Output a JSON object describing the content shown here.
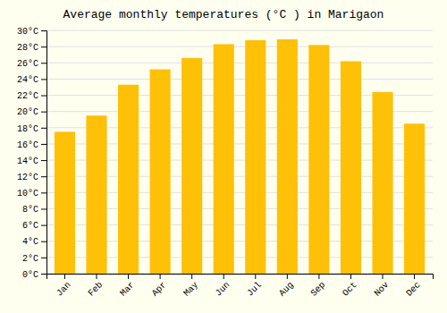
{
  "chart_data": {
    "type": "bar",
    "title": "Average monthly temperatures (°C ) in Marigaon",
    "categories": [
      "Jan",
      "Feb",
      "Mar",
      "Apr",
      "May",
      "Jun",
      "Jul",
      "Aug",
      "Sep",
      "Oct",
      "Nov",
      "Dec"
    ],
    "values": [
      17.5,
      19.5,
      23.3,
      25.2,
      26.6,
      28.3,
      28.8,
      28.9,
      28.2,
      26.2,
      22.4,
      18.5
    ],
    "color": "#FFC107",
    "ylim": [
      0,
      30
    ],
    "yticks": [
      {
        "value": 0,
        "label": "0°C"
      },
      {
        "value": 2,
        "label": "2°C"
      },
      {
        "value": 4,
        "label": "4°C"
      },
      {
        "value": 6,
        "label": "6°C"
      },
      {
        "value": 8,
        "label": "8°C"
      },
      {
        "value": 10,
        "label": "10°C"
      },
      {
        "value": 12,
        "label": "12°C"
      },
      {
        "value": 14,
        "label": "14°C"
      },
      {
        "value": 16,
        "label": "16°C"
      },
      {
        "value": 18,
        "label": "18°C"
      },
      {
        "value": 20,
        "label": "20°C"
      },
      {
        "value": 22,
        "label": "22°C"
      },
      {
        "value": 24,
        "label": "24°C"
      },
      {
        "value": 26,
        "label": "26°C"
      },
      {
        "value": 28,
        "label": "28°C"
      },
      {
        "value": 30,
        "label": "30°C"
      }
    ],
    "grid": true
  }
}
